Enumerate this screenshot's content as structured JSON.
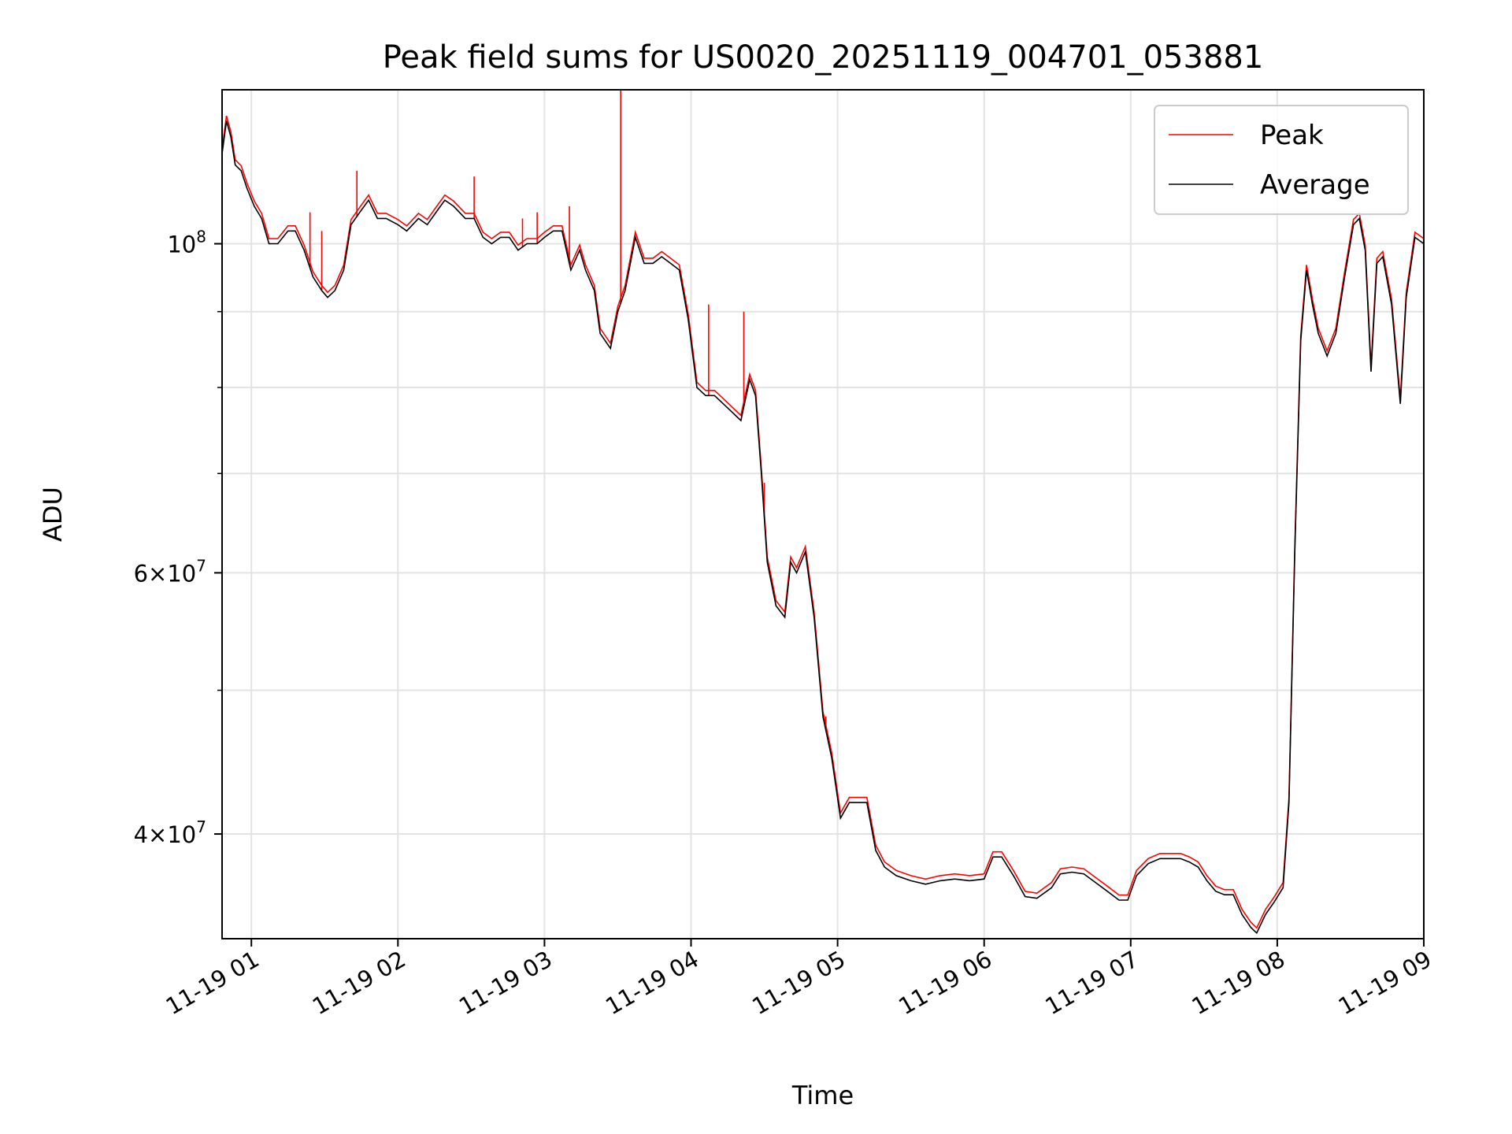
{
  "chart_data": {
    "type": "line",
    "title": "Peak field sums for US0020_20251119_004701_053881",
    "xlabel": "Time",
    "ylabel": "ADU",
    "yscale": "log",
    "xlim_hours": [
      0.8,
      9.0
    ],
    "ylim": [
      34000000,
      127000000
    ],
    "grid": true,
    "legend_position": "top-right",
    "x_ticks": [
      {
        "label": "11-19 01",
        "hour": 1
      },
      {
        "label": "11-19 02",
        "hour": 2
      },
      {
        "label": "11-19 03",
        "hour": 3
      },
      {
        "label": "11-19 04",
        "hour": 4
      },
      {
        "label": "11-19 05",
        "hour": 5
      },
      {
        "label": "11-19 06",
        "hour": 6
      },
      {
        "label": "11-19 07",
        "hour": 7
      },
      {
        "label": "11-19 08",
        "hour": 8
      },
      {
        "label": "11-19 09",
        "hour": 9
      }
    ],
    "y_major_ticks": [
      {
        "value": 40000000,
        "mantissa": "4",
        "exponent": "7"
      },
      {
        "value": 60000000,
        "mantissa": "6",
        "exponent": "7"
      },
      {
        "value": 100000000,
        "mantissa": "",
        "exponent": "8"
      }
    ],
    "y_minor_ticks": [
      50000000,
      70000000,
      80000000,
      90000000
    ],
    "series": [
      {
        "name": "Average",
        "color": "#000000",
        "points": [
          [
            0.8,
            115000000
          ],
          [
            0.83,
            121000000
          ],
          [
            0.86,
            118000000
          ],
          [
            0.89,
            113000000
          ],
          [
            0.93,
            112000000
          ],
          [
            0.97,
            109000000
          ],
          [
            1.02,
            106000000
          ],
          [
            1.07,
            104000000
          ],
          [
            1.12,
            100000000
          ],
          [
            1.18,
            100000000
          ],
          [
            1.25,
            102000000
          ],
          [
            1.3,
            102000000
          ],
          [
            1.36,
            99000000
          ],
          [
            1.42,
            95000000
          ],
          [
            1.48,
            93000000
          ],
          [
            1.52,
            92000000
          ],
          [
            1.57,
            93000000
          ],
          [
            1.63,
            96000000
          ],
          [
            1.68,
            103000000
          ],
          [
            1.74,
            105000000
          ],
          [
            1.8,
            107000000
          ],
          [
            1.86,
            104000000
          ],
          [
            1.92,
            104000000
          ],
          [
            2.0,
            103000000
          ],
          [
            2.06,
            102000000
          ],
          [
            2.14,
            104000000
          ],
          [
            2.2,
            103000000
          ],
          [
            2.26,
            105000000
          ],
          [
            2.32,
            107000000
          ],
          [
            2.38,
            106000000
          ],
          [
            2.46,
            104000000
          ],
          [
            2.52,
            104000000
          ],
          [
            2.58,
            101000000
          ],
          [
            2.64,
            100000000
          ],
          [
            2.7,
            101000000
          ],
          [
            2.76,
            101000000
          ],
          [
            2.82,
            99000000
          ],
          [
            2.88,
            100000000
          ],
          [
            2.95,
            100000000
          ],
          [
            3.0,
            101000000
          ],
          [
            3.06,
            102000000
          ],
          [
            3.12,
            102000000
          ],
          [
            3.18,
            96000000
          ],
          [
            3.24,
            99000000
          ],
          [
            3.28,
            96000000
          ],
          [
            3.34,
            93000000
          ],
          [
            3.38,
            87000000
          ],
          [
            3.45,
            85000000
          ],
          [
            3.5,
            90000000
          ],
          [
            3.55,
            93000000
          ],
          [
            3.62,
            101000000
          ],
          [
            3.68,
            97000000
          ],
          [
            3.74,
            97000000
          ],
          [
            3.8,
            98000000
          ],
          [
            3.86,
            97000000
          ],
          [
            3.92,
            96000000
          ],
          [
            3.98,
            89000000
          ],
          [
            4.04,
            80000000
          ],
          [
            4.1,
            79000000
          ],
          [
            4.16,
            79000000
          ],
          [
            4.22,
            78000000
          ],
          [
            4.28,
            77000000
          ],
          [
            4.34,
            76000000
          ],
          [
            4.4,
            81000000
          ],
          [
            4.44,
            79000000
          ],
          [
            4.48,
            70000000
          ],
          [
            4.52,
            61000000
          ],
          [
            4.58,
            57000000
          ],
          [
            4.64,
            56000000
          ],
          [
            4.68,
            61000000
          ],
          [
            4.72,
            60000000
          ],
          [
            4.78,
            62000000
          ],
          [
            4.84,
            56000000
          ],
          [
            4.9,
            48000000
          ],
          [
            4.96,
            45000000
          ],
          [
            5.02,
            41000000
          ],
          [
            5.08,
            42000000
          ],
          [
            5.14,
            42000000
          ],
          [
            5.2,
            42000000
          ],
          [
            5.26,
            39000000
          ],
          [
            5.32,
            38000000
          ],
          [
            5.4,
            37500000
          ],
          [
            5.5,
            37200000
          ],
          [
            5.6,
            37000000
          ],
          [
            5.7,
            37200000
          ],
          [
            5.8,
            37300000
          ],
          [
            5.9,
            37200000
          ],
          [
            6.0,
            37300000
          ],
          [
            6.06,
            38600000
          ],
          [
            6.12,
            38600000
          ],
          [
            6.2,
            37500000
          ],
          [
            6.28,
            36300000
          ],
          [
            6.36,
            36200000
          ],
          [
            6.46,
            36800000
          ],
          [
            6.52,
            37600000
          ],
          [
            6.6,
            37700000
          ],
          [
            6.68,
            37600000
          ],
          [
            6.76,
            37100000
          ],
          [
            6.84,
            36600000
          ],
          [
            6.92,
            36100000
          ],
          [
            6.98,
            36100000
          ],
          [
            7.04,
            37500000
          ],
          [
            7.12,
            38200000
          ],
          [
            7.2,
            38500000
          ],
          [
            7.28,
            38500000
          ],
          [
            7.34,
            38500000
          ],
          [
            7.4,
            38300000
          ],
          [
            7.46,
            38000000
          ],
          [
            7.52,
            37200000
          ],
          [
            7.58,
            36600000
          ],
          [
            7.64,
            36400000
          ],
          [
            7.7,
            36400000
          ],
          [
            7.76,
            35300000
          ],
          [
            7.82,
            34600000
          ],
          [
            7.86,
            34300000
          ],
          [
            7.92,
            35300000
          ],
          [
            7.98,
            36000000
          ],
          [
            8.04,
            36800000
          ],
          [
            8.08,
            42000000
          ],
          [
            8.12,
            62000000
          ],
          [
            8.16,
            86000000
          ],
          [
            8.2,
            96000000
          ],
          [
            8.24,
            91000000
          ],
          [
            8.28,
            87000000
          ],
          [
            8.34,
            84000000
          ],
          [
            8.4,
            87000000
          ],
          [
            8.46,
            95000000
          ],
          [
            8.52,
            103000000
          ],
          [
            8.56,
            104000000
          ],
          [
            8.6,
            99000000
          ],
          [
            8.64,
            82000000
          ],
          [
            8.68,
            97000000
          ],
          [
            8.72,
            98000000
          ],
          [
            8.78,
            91000000
          ],
          [
            8.84,
            78000000
          ],
          [
            8.88,
            92000000
          ],
          [
            8.94,
            101000000
          ],
          [
            9.0,
            100000000
          ]
        ]
      },
      {
        "name": "Peak",
        "color": "#ff0000",
        "spikes": [
          [
            1.4,
            105000000
          ],
          [
            1.48,
            102000000
          ],
          [
            1.72,
            112000000
          ],
          [
            2.52,
            111000000
          ],
          [
            2.85,
            104000000
          ],
          [
            2.95,
            105000000
          ],
          [
            3.17,
            106000000
          ],
          [
            3.52,
            127000000
          ],
          [
            4.12,
            91000000
          ],
          [
            4.36,
            90000000
          ],
          [
            4.5,
            69000000
          ],
          [
            4.92,
            48000000
          ]
        ]
      }
    ]
  }
}
